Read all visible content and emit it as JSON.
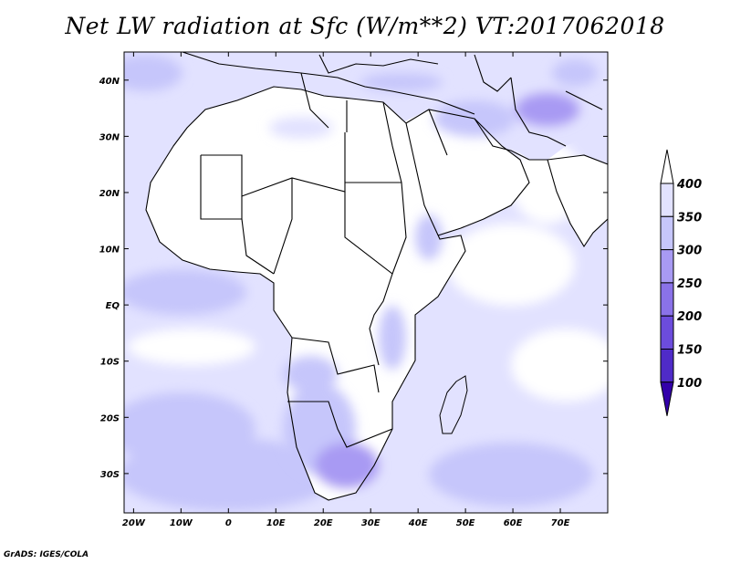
{
  "title": "Net LW radiation at Sfc (W/m**2) VT:2017062018",
  "credit": "GrADS: IGES/COLA",
  "map": {
    "lon_range": [
      -22,
      80
    ],
    "lat_range": [
      -37,
      45
    ],
    "lon_ticks": [
      {
        "value": -20,
        "label": "20W"
      },
      {
        "value": -10,
        "label": "10W"
      },
      {
        "value": 0,
        "label": "0"
      },
      {
        "value": 10,
        "label": "10E"
      },
      {
        "value": 20,
        "label": "20E"
      },
      {
        "value": 30,
        "label": "30E"
      },
      {
        "value": 40,
        "label": "40E"
      },
      {
        "value": 50,
        "label": "50E"
      },
      {
        "value": 60,
        "label": "60E"
      },
      {
        "value": 70,
        "label": "70E"
      }
    ],
    "lat_ticks": [
      {
        "value": 40,
        "label": "40N"
      },
      {
        "value": 30,
        "label": "30N"
      },
      {
        "value": 20,
        "label": "20N"
      },
      {
        "value": 10,
        "label": "10N"
      },
      {
        "value": 0,
        "label": "EQ"
      },
      {
        "value": -10,
        "label": "10S"
      },
      {
        "value": -20,
        "label": "20S"
      },
      {
        "value": -30,
        "label": "30S"
      }
    ]
  },
  "colorbar": {
    "levels": [
      {
        "label": "400",
        "color": "#ffffff"
      },
      {
        "label": "350",
        "color": "#e2e2ff"
      },
      {
        "label": "300",
        "color": "#c6c6fb"
      },
      {
        "label": "250",
        "color": "#a89af3"
      },
      {
        "label": "200",
        "color": "#8a72e8"
      },
      {
        "label": "150",
        "color": "#6c4cdc"
      },
      {
        "label": "100",
        "color": "#4f2bc8"
      }
    ],
    "top_color": "#ffffff",
    "bottom_color": "#3300aa",
    "bin_colors": [
      "#e2e2ff",
      "#c6c6fb",
      "#a89af3",
      "#8a72e8",
      "#6c4cdc",
      "#4f2bc8"
    ]
  }
}
